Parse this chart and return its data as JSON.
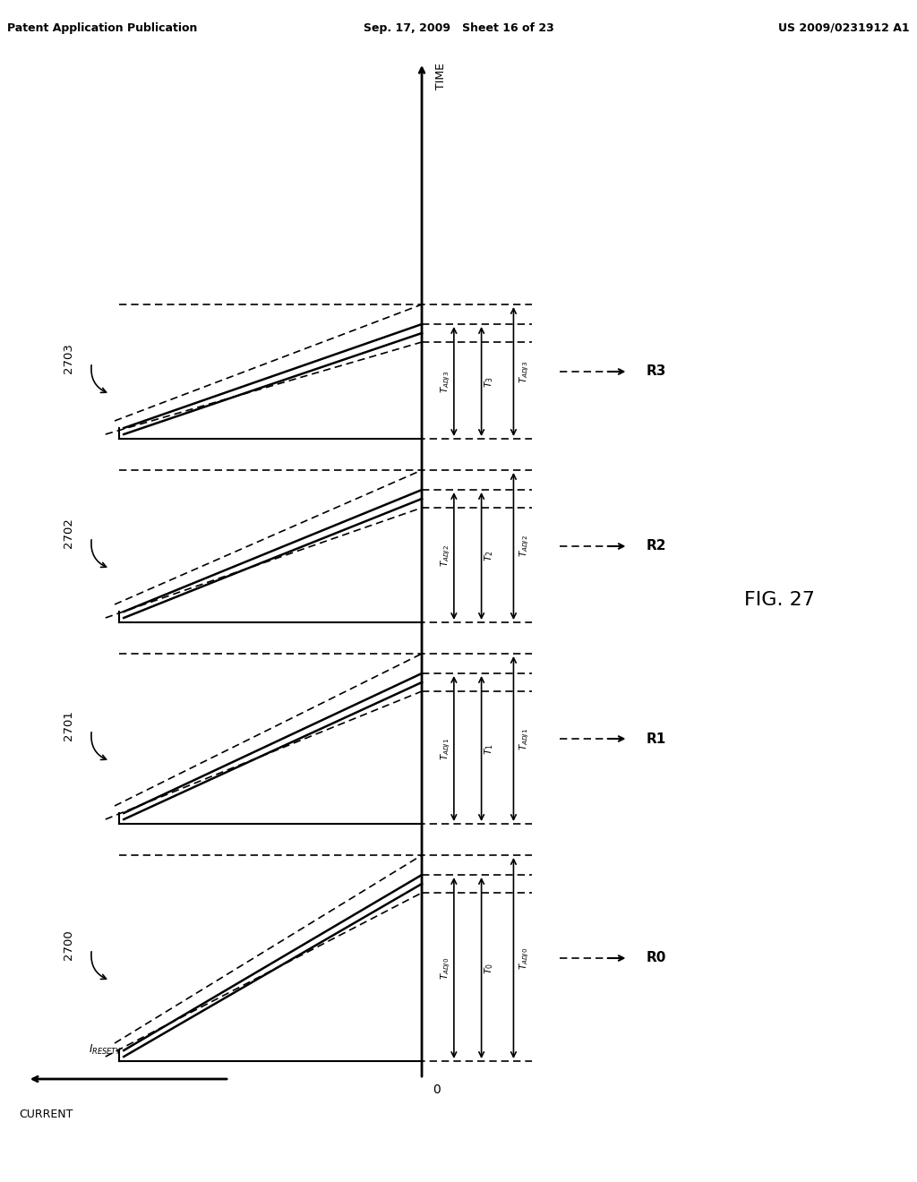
{
  "title": "FIG. 27",
  "header_left": "Patent Application Publication",
  "header_center": "Sep. 17, 2009   Sheet 16 of 23",
  "header_right": "US 2009/0231912 A1",
  "fig_label": "FIG. 27",
  "axis_x_label": "TIME",
  "axis_y_label": "CURRENT",
  "y_label_resety": "I_RESETY",
  "x_label_0": "0",
  "pulse_labels": [
    "2700",
    "2701",
    "2702",
    "2703"
  ],
  "R_labels": [
    "R0",
    "R1",
    "R2",
    "R3"
  ],
  "T_labels": [
    "T_ADJ0",
    "T_0",
    "T_ADJ1",
    "T_1",
    "T_ADJ2",
    "T_2",
    "T_ADJ3",
    "T_3"
  ],
  "background": "#ffffff",
  "line_color": "#000000"
}
